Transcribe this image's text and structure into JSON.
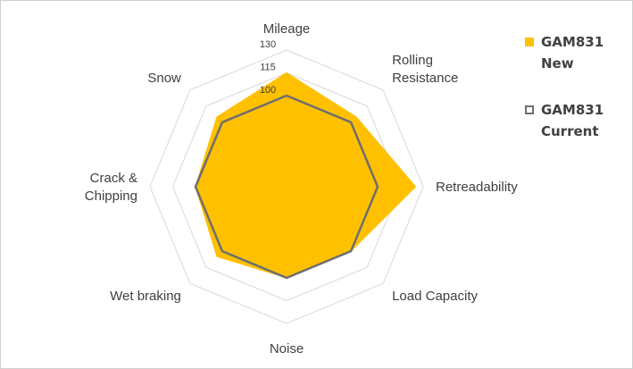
{
  "chart_data": {
    "type": "radar",
    "title": "",
    "axes": [
      "Mileage",
      "Rolling Resistance",
      "Retreadability",
      "Load Capacity",
      "Noise",
      "Wet braking",
      "Crack & Chipping",
      "Snow"
    ],
    "axis_label_lines": [
      [
        "Mileage"
      ],
      [
        "Rolling",
        "Resistance"
      ],
      [
        "Retreadability"
      ],
      [
        "Load Capacity"
      ],
      [
        "Noise"
      ],
      [
        "Wet braking"
      ],
      [
        "Crack &",
        "Chipping"
      ],
      [
        "Snow"
      ]
    ],
    "scale": {
      "min": 40,
      "max": 130,
      "step": 15,
      "visible_ticks": [
        100,
        115,
        130
      ]
    },
    "grid": true,
    "legend_position": "right",
    "series": [
      {
        "name": "GAM831 New",
        "fill": "#FFC000",
        "values": [
          115,
          105,
          125,
          100,
          100,
          105,
          100,
          105
        ]
      },
      {
        "name": "GAM831 Current",
        "stroke": "#6E6E6E",
        "values": [
          100,
          100,
          100,
          100,
          100,
          100,
          100,
          100
        ]
      }
    ]
  },
  "legend": {
    "new_label": "GAM831 New",
    "current_label": "GAM831 Current",
    "new_color": "#FFC000",
    "current_color": "#6E6E6E"
  }
}
